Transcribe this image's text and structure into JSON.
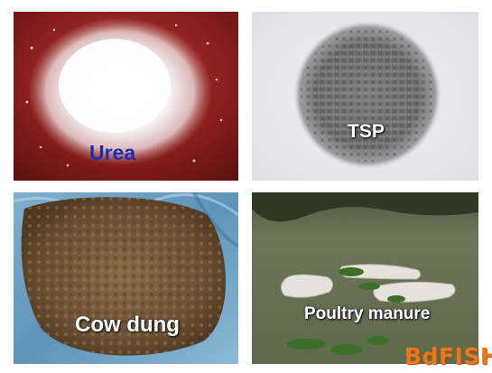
{
  "panels": {
    "urea": {
      "caption": "Urea"
    },
    "tsp": {
      "caption": "TSP"
    },
    "cow_dung": {
      "caption": "Cow dung"
    },
    "poultry_manure": {
      "caption": "Poultry manure"
    }
  },
  "watermark": {
    "text": "BdFISH"
  },
  "colors": {
    "urea_caption": "#1a2fb0",
    "logo": "#e8781c",
    "background": "#ffffff"
  }
}
